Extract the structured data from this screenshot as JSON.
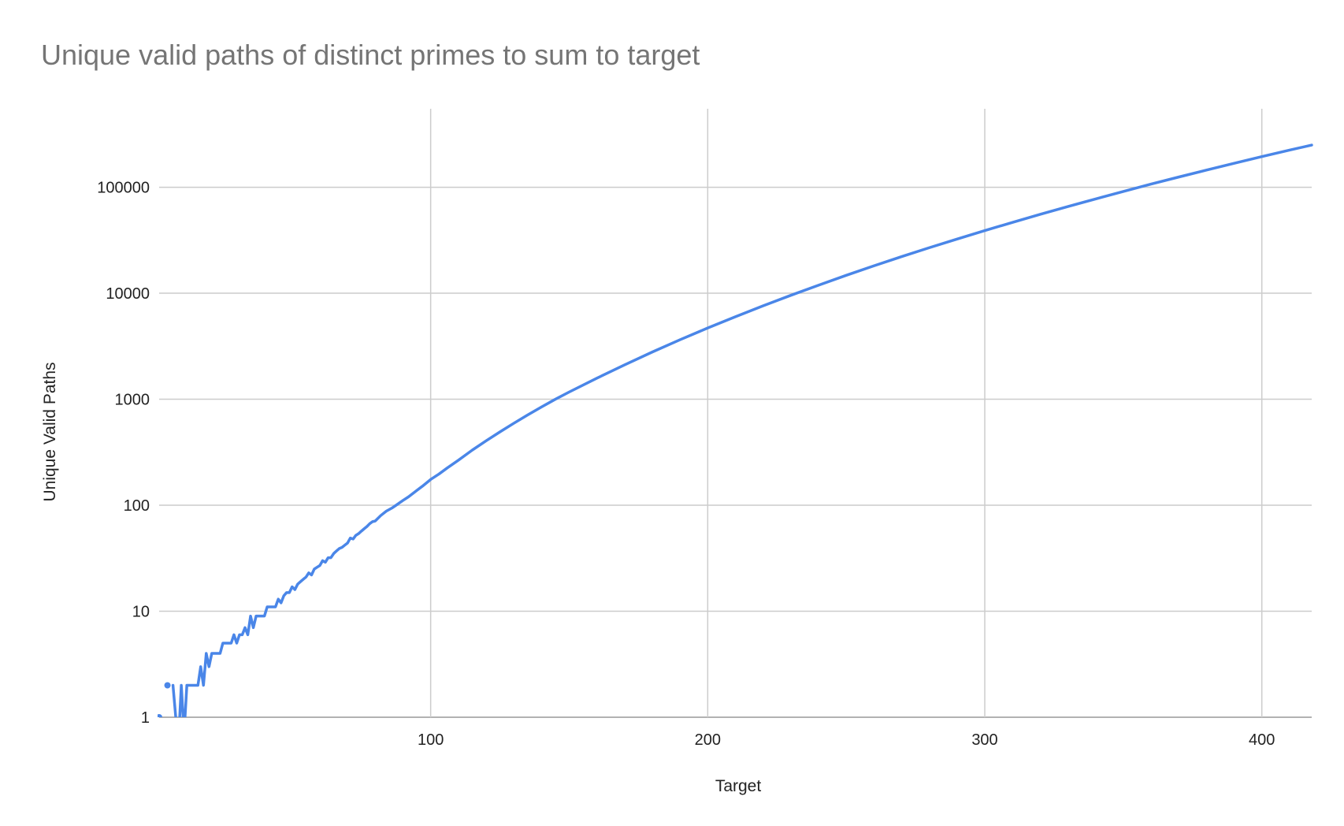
{
  "chart_data": {
    "type": "line",
    "title": "Unique valid paths of distinct primes to sum to target",
    "xlabel": "Target",
    "ylabel": "Unique Valid Paths",
    "y_scale": "log",
    "xlim": [
      2,
      418
    ],
    "ylim": [
      1,
      550000
    ],
    "x_ticks": [
      100,
      200,
      300,
      400
    ],
    "x_tick_labels": [
      "100",
      "200",
      "300",
      "400"
    ],
    "y_ticks": [
      1,
      10,
      100,
      1000,
      10000,
      100000
    ],
    "y_tick_labels": [
      "1",
      "10",
      "100",
      "1000",
      "10000",
      "100000"
    ],
    "grid": true,
    "legend": "none",
    "series": [
      {
        "color": "#4a86e8",
        "points": [
          [
            2,
            1
          ],
          [
            5,
            2
          ],
          [
            7,
            2
          ],
          [
            8,
            1
          ],
          [
            9,
            0.6
          ],
          [
            10,
            2
          ],
          [
            11,
            0.7
          ],
          [
            12,
            2
          ],
          [
            13,
            2
          ],
          [
            14,
            2
          ],
          [
            15,
            2
          ],
          [
            16,
            2
          ],
          [
            17,
            3
          ],
          [
            18,
            2
          ],
          [
            19,
            4
          ],
          [
            20,
            3
          ],
          [
            21,
            4
          ],
          [
            22,
            4
          ],
          [
            23,
            4
          ],
          [
            24,
            4
          ],
          [
            25,
            5
          ],
          [
            26,
            5
          ],
          [
            27,
            5
          ],
          [
            28,
            5
          ],
          [
            29,
            6
          ],
          [
            30,
            5
          ],
          [
            31,
            6
          ],
          [
            32,
            6
          ],
          [
            33,
            7
          ],
          [
            34,
            6
          ],
          [
            35,
            9
          ],
          [
            36,
            7
          ],
          [
            37,
            9
          ],
          [
            38,
            9
          ],
          [
            39,
            9
          ],
          [
            40,
            9
          ],
          [
            41,
            11
          ],
          [
            42,
            11
          ],
          [
            43,
            11
          ],
          [
            44,
            11
          ],
          [
            45,
            13
          ],
          [
            46,
            12
          ],
          [
            47,
            14
          ],
          [
            48,
            15
          ],
          [
            49,
            15
          ],
          [
            50,
            17
          ],
          [
            51,
            16
          ],
          [
            52,
            18
          ],
          [
            53,
            19
          ],
          [
            54,
            20
          ],
          [
            55,
            21
          ],
          [
            56,
            23
          ],
          [
            57,
            22
          ],
          [
            58,
            25
          ],
          [
            59,
            26
          ],
          [
            60,
            27
          ],
          [
            61,
            30
          ],
          [
            62,
            29
          ],
          [
            63,
            32
          ],
          [
            64,
            32
          ],
          [
            65,
            35
          ],
          [
            66,
            37
          ],
          [
            67,
            39
          ],
          [
            68,
            40
          ],
          [
            69,
            42
          ],
          [
            70,
            44
          ],
          [
            71,
            49
          ],
          [
            72,
            48
          ],
          [
            73,
            52
          ],
          [
            74,
            54
          ],
          [
            75,
            57
          ],
          [
            76,
            60
          ],
          [
            77,
            63
          ],
          [
            78,
            67
          ],
          [
            79,
            70
          ],
          [
            80,
            71
          ],
          [
            82,
            80
          ],
          [
            84,
            88
          ],
          [
            86,
            94
          ],
          [
            88,
            102
          ],
          [
            90,
            111
          ],
          [
            92,
            120
          ],
          [
            95,
            138
          ],
          [
            97,
            151
          ],
          [
            100,
            175
          ],
          [
            103,
            197
          ],
          [
            106,
            225
          ],
          [
            110,
            266
          ],
          [
            115,
            331
          ],
          [
            120,
            405
          ],
          [
            125,
            492
          ],
          [
            130,
            593
          ],
          [
            135,
            710
          ],
          [
            140,
            845
          ],
          [
            145,
            1000
          ],
          [
            150,
            1170
          ],
          [
            160,
            1580
          ],
          [
            170,
            2110
          ],
          [
            180,
            2790
          ],
          [
            190,
            3640
          ],
          [
            200,
            4700
          ],
          [
            210,
            6000
          ],
          [
            220,
            7610
          ],
          [
            230,
            9560
          ],
          [
            240,
            11900
          ],
          [
            250,
            14760
          ],
          [
            260,
            18150
          ],
          [
            270,
            22170
          ],
          [
            280,
            26900
          ],
          [
            290,
            32470
          ],
          [
            300,
            39000
          ],
          [
            310,
            46600
          ],
          [
            320,
            55500
          ],
          [
            330,
            65800
          ],
          [
            340,
            77600
          ],
          [
            350,
            91200
          ],
          [
            360,
            107000
          ],
          [
            370,
            124800
          ],
          [
            380,
            145200
          ],
          [
            390,
            168300
          ],
          [
            400,
            194500
          ],
          [
            410,
            224000
          ],
          [
            418,
            250000
          ]
        ]
      }
    ]
  }
}
